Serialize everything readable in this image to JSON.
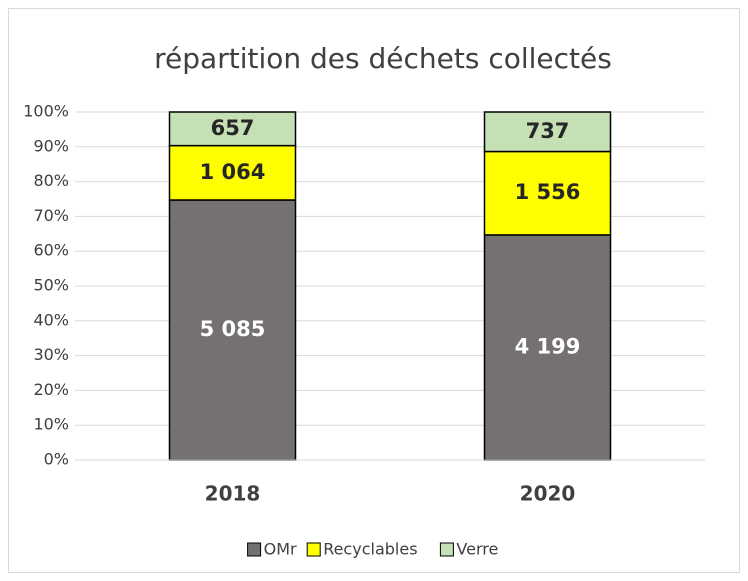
{
  "chart_data": {
    "type": "bar",
    "stacking": "percent",
    "title": "répartition des déchets collectés",
    "categories": [
      "2018",
      "2020"
    ],
    "series": [
      {
        "name": "OMr",
        "color": "#767171",
        "label_color": "#ffffff",
        "values": [
          5085,
          4199
        ],
        "value_labels": [
          "5 085",
          "4 199"
        ]
      },
      {
        "name": "Recyclables",
        "color": "#ffff00",
        "label_color": "#262626",
        "values": [
          1064,
          1556
        ],
        "value_labels": [
          "1 064",
          "1 556"
        ]
      },
      {
        "name": "Verre",
        "color": "#c5e0b4",
        "label_color": "#262626",
        "values": [
          657,
          737
        ],
        "value_labels": [
          "657",
          "737"
        ]
      }
    ],
    "ylim": [
      0,
      100
    ],
    "yticks": [
      {
        "value": 0,
        "label": "0%"
      },
      {
        "value": 10,
        "label": "10%"
      },
      {
        "value": 20,
        "label": "20%"
      },
      {
        "value": 30,
        "label": "30%"
      },
      {
        "value": 40,
        "label": "40%"
      },
      {
        "value": 50,
        "label": "50%"
      },
      {
        "value": 60,
        "label": "60%"
      },
      {
        "value": 70,
        "label": "70%"
      },
      {
        "value": 80,
        "label": "80%"
      },
      {
        "value": 90,
        "label": "90%"
      },
      {
        "value": 100,
        "label": "100%"
      }
    ],
    "grid": true,
    "legend": "bottom"
  }
}
